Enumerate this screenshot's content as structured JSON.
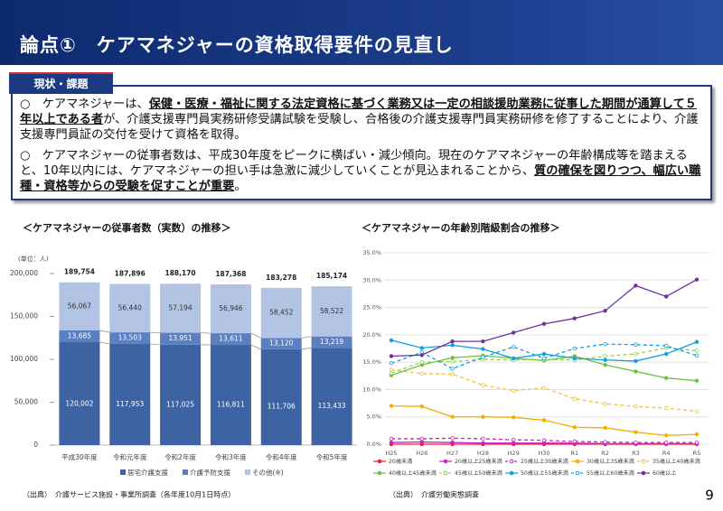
{
  "header": {
    "title": "論点①　ケアマネジャーの資格取得要件の見直し"
  },
  "section_label": "現状・課題",
  "bullets": [
    {
      "marker": "○",
      "parts": [
        {
          "text": "ケアマネジャーは、",
          "emphasis": false
        },
        {
          "text": "保健・医療・福祉に関する法定資格に基づく業務又は一定の相談援助業務に従事した期間が通算して５年以上である者",
          "emphasis": true
        },
        {
          "text": "が、介護支援専門員実務研修受講試験を受験し、合格後の介護支援専門員実務研修を修了することにより、介護支援専門員証の交付を受けて資格を取得。",
          "emphasis": false
        }
      ]
    },
    {
      "marker": "○",
      "parts": [
        {
          "text": "ケアマネジャーの従事者数は、平成30年度をピークに横ばい・減少傾向。現在のケアマネジャーの年齢構成等を踏まえると、10年以内には、ケアマネジャーの担い手は急激に減少していくことが見込まれることから、",
          "emphasis": false
        },
        {
          "text": "質の確保を図りつつ、幅広い職種・資格等からの受験を促すことが重要",
          "emphasis": true
        },
        {
          "text": "。",
          "emphasis": false
        }
      ]
    }
  ],
  "page_number": "9",
  "chart_data": [
    {
      "type": "stacked_bar",
      "title": "＜ケアマネジャーの従事者数（実数）の推移＞",
      "unit_label": "(単位：人)",
      "categories": [
        "平成30年度",
        "令和元年度",
        "令和2年度",
        "令和3年度",
        "令和4年度",
        "令和5年度"
      ],
      "series": [
        {
          "name": "居宅介護支援",
          "color": "#3e63a3",
          "values": [
            120002,
            117953,
            117025,
            116811,
            111706,
            113433
          ],
          "value_labels": [
            "120,002",
            "117,953",
            "117,025",
            "116,811",
            "111,706",
            "113,433"
          ]
        },
        {
          "name": "介護予防支援",
          "color": "#5b80c2",
          "values": [
            13685,
            13503,
            13951,
            13611,
            13120,
            13219
          ],
          "value_labels": [
            "13,685",
            "13,503",
            "13,951",
            "13,611",
            "13,120",
            "13,219"
          ]
        },
        {
          "name": "その他(※)",
          "color": "#b3c3e3",
          "values": [
            56067,
            56440,
            57194,
            56946,
            58452,
            58522
          ],
          "value_labels": [
            "56,067",
            "56,440",
            "57,194",
            "56,946",
            "58,452",
            "58,522"
          ]
        }
      ],
      "totals": [
        189754,
        187896,
        188170,
        187368,
        183278,
        185174
      ],
      "totals_labels": [
        "189,754",
        "187,896",
        "188,170",
        "187,368",
        "183,278",
        "185,174"
      ],
      "ylim": [
        0,
        200000
      ],
      "yticks": [
        0,
        {
          "value": 50000,
          "label": "50,000"
        },
        {
          "value": 100000,
          "label": "100,000"
        },
        {
          "value": 150000,
          "label": "150,000"
        },
        {
          "value": 200000,
          "label": "200,000"
        }
      ],
      "source": "（出典）　介護サービス施設・事業所調査（各年度10月1日時点）"
    },
    {
      "type": "line",
      "title": "＜ケアマネジャーの年齢別階級割合の推移＞",
      "categories": [
        "H25",
        "H26",
        "H27",
        "H28",
        "H29",
        "H30",
        "R1",
        "R2",
        "R3",
        "R4",
        "R5"
      ],
      "series": [
        {
          "name": "20歳未満",
          "color": "#e8203a",
          "dash": false,
          "values": [
            0,
            0,
            0,
            0,
            0,
            0,
            0,
            0,
            0,
            0,
            0
          ]
        },
        {
          "name": "20歳以上25歳未満",
          "color": "#cc22c0",
          "dash": false,
          "values": [
            0.3,
            0.4,
            0.3,
            0.2,
            0.2,
            0.2,
            0.2,
            0.1,
            0.1,
            0.1,
            0.1
          ]
        },
        {
          "name": "25歳以上30歳未満",
          "color": "#cc22c0",
          "dash": true,
          "values": [
            1.0,
            1.0,
            1.1,
            1.0,
            0.8,
            0.7,
            0.5,
            0.4,
            0.3,
            0.3,
            0.3
          ]
        },
        {
          "name": "30歳以上35歳未満",
          "color": "#f0b000",
          "dash": false,
          "values": [
            7.0,
            6.9,
            5.0,
            5.0,
            4.9,
            4.4,
            3.1,
            3.0,
            2.2,
            1.6,
            1.8
          ]
        },
        {
          "name": "35歳以上40歳未満",
          "color": "#f0c040",
          "dash": true,
          "values": [
            13.6,
            12.9,
            12.8,
            10.8,
            9.8,
            10.3,
            8.3,
            7.4,
            6.9,
            6.6,
            6.0
          ]
        },
        {
          "name": "40歳以上45歳未満",
          "color": "#6cc03c",
          "dash": false,
          "values": [
            12.6,
            14.5,
            15.8,
            16.2,
            15.7,
            15.3,
            16.1,
            14.5,
            13.3,
            12.1,
            11.6
          ]
        },
        {
          "name": "45歳以上50歳未満",
          "color": "#92d050",
          "dash": true,
          "values": [
            13.0,
            15.0,
            15.1,
            15.5,
            15.4,
            15.5,
            15.4,
            16.1,
            16.5,
            17.6,
            17.1
          ]
        },
        {
          "name": "50歳以上55歳未満",
          "color": "#10a0e0",
          "dash": false,
          "values": [
            19.0,
            17.6,
            18.1,
            17.4,
            15.7,
            16.5,
            15.7,
            15.4,
            15.2,
            16.5,
            18.7
          ]
        },
        {
          "name": "55歳以上60歳未満",
          "color": "#10a0e0",
          "dash": true,
          "values": [
            14.8,
            16.8,
            13.8,
            15.9,
            17.8,
            15.7,
            17.5,
            18.3,
            18.2,
            18.0,
            16.2
          ]
        },
        {
          "name": "60歳以上",
          "color": "#7030a0",
          "dash": false,
          "values": [
            16.1,
            16.3,
            18.8,
            18.8,
            20.4,
            22.0,
            23.0,
            24.4,
            29.0,
            27.0,
            30.1
          ]
        }
      ],
      "ylim": [
        0,
        35
      ],
      "yticks": [
        {
          "value": 0,
          "label": "0.0%"
        },
        {
          "value": 5,
          "label": "5.0%"
        },
        {
          "value": 10,
          "label": "10.0%"
        },
        {
          "value": 15,
          "label": "15.0%"
        },
        {
          "value": 20,
          "label": "20.0%"
        },
        {
          "value": 25,
          "label": "25.0%"
        },
        {
          "value": 30,
          "label": "30.0%"
        },
        {
          "value": 35,
          "label": "35.0%"
        }
      ],
      "grid": true,
      "source": "（出典）　介護労働実態調査"
    }
  ]
}
